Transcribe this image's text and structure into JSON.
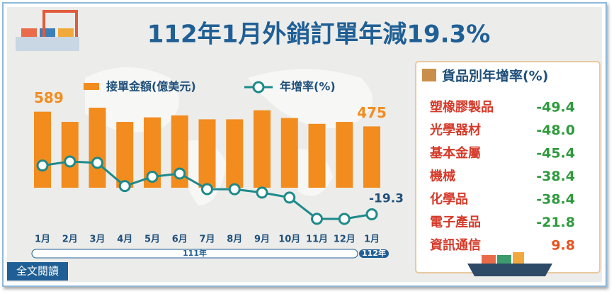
{
  "chart_data": {
    "type": "bar",
    "title": "112年1月外銷訂單年減19.3%",
    "categories": [
      "1月",
      "2月",
      "3月",
      "4月",
      "5月",
      "6月",
      "7月",
      "8月",
      "9月",
      "10月",
      "11月",
      "12月",
      "1月"
    ],
    "period_labels": [
      "111年",
      "112年"
    ],
    "series": [
      {
        "name": "接單金額(億美元)",
        "color": "#f28c1e",
        "values": [
          589,
          510,
          620,
          510,
          545,
          560,
          530,
          530,
          600,
          540,
          495,
          510,
          475
        ],
        "value_labels": [
          "589",
          null,
          null,
          null,
          null,
          null,
          null,
          null,
          null,
          null,
          null,
          null,
          "475"
        ]
      },
      {
        "name": "年增率(%)",
        "type": "line",
        "axis": "y2",
        "color": "#1d8a8a",
        "values": [
          22.0,
          25.4,
          24.3,
          4.6,
          12.5,
          15.2,
          2.0,
          1.9,
          -0.9,
          -5.1,
          -23.1,
          -23.2,
          -19.3
        ],
        "value_labels": [
          null,
          null,
          null,
          null,
          null,
          null,
          null,
          null,
          null,
          null,
          null,
          null,
          "-19.3"
        ]
      }
    ]
  },
  "panel": {
    "title": "貨品別年增率(%)",
    "rows": [
      {
        "name": "塑橡膠製品",
        "value": "-49.4",
        "color": "#2e9a3c"
      },
      {
        "name": "光學器材",
        "value": "-48.0",
        "color": "#2e9a3c"
      },
      {
        "name": "基本金屬",
        "value": "-45.4",
        "color": "#2e9a3c"
      },
      {
        "name": "機械",
        "value": "-38.4",
        "color": "#2e9a3c"
      },
      {
        "name": "化學品",
        "value": "-38.4",
        "color": "#2e9a3c"
      },
      {
        "name": "電子產品",
        "value": "-21.8",
        "color": "#2e9a3c"
      },
      {
        "name": "資訊通信",
        "value": "9.8",
        "color": "#e8501e"
      }
    ]
  },
  "button": "全文閱讀"
}
